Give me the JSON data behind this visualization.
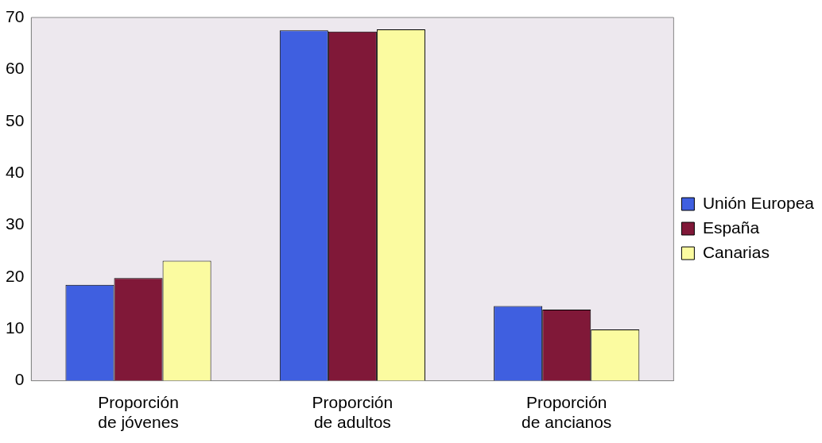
{
  "chart_data": {
    "type": "bar",
    "categories": [
      "Proporción de jóvenes",
      "Proporción de adultos",
      "Proporción de ancianos"
    ],
    "series": [
      {
        "name": "Unión Europea",
        "color": "#3f5fe0",
        "values": [
          18.5,
          67.5,
          14.4
        ]
      },
      {
        "name": "España",
        "color": "#801838",
        "values": [
          19.8,
          67.3,
          13.7
        ]
      },
      {
        "name": "Canarias",
        "color": "#fbfba0",
        "values": [
          23.1,
          67.7,
          9.9
        ]
      }
    ],
    "ylim": [
      0,
      70
    ],
    "yticks": [
      0,
      10,
      20,
      30,
      40,
      50,
      60,
      70
    ],
    "grid": false,
    "legend": "right"
  }
}
